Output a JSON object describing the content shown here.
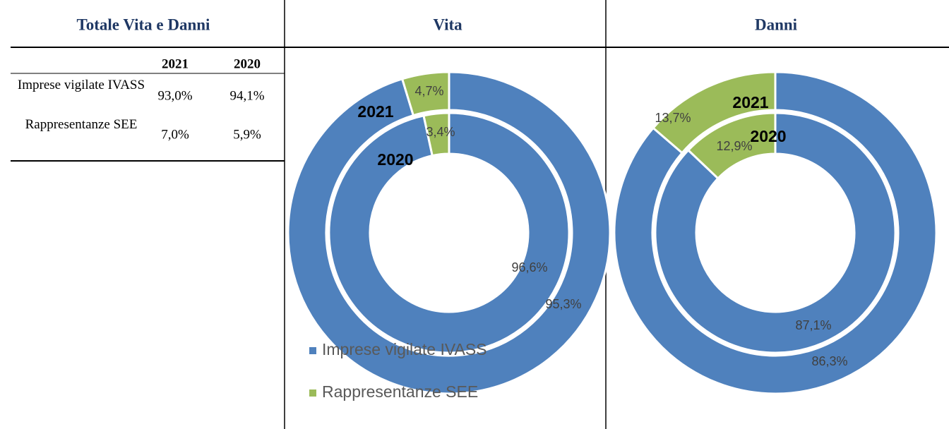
{
  "headers": [
    "Totale Vita e Danni",
    "Vita",
    "Danni"
  ],
  "table": {
    "columns": [
      "2021",
      "2020"
    ],
    "rows": [
      {
        "label": "Imprese vigilate IVASS",
        "values": [
          "93,0%",
          "94,1%"
        ]
      },
      {
        "label": "Rappresentanze SEE",
        "values": [
          "7,0%",
          "5,9%"
        ]
      }
    ]
  },
  "chart_data": [
    {
      "type": "donut",
      "categories": [
        "Imprese vigilate IVASS",
        "Rappresentanze SEE"
      ],
      "colors": [
        "#4f81bd",
        "#9bbb59"
      ],
      "series": [
        {
          "name": "2021",
          "values": [
            95.3,
            4.7
          ],
          "value_labels": [
            "95,3%",
            "4,7%"
          ]
        },
        {
          "name": "2020",
          "values": [
            96.6,
            3.4
          ],
          "value_labels": [
            "96,6%",
            "3,4%"
          ]
        }
      ]
    },
    {
      "type": "donut",
      "colors": [
        "#4f81bd",
        "#9bbb59"
      ],
      "series": [
        {
          "name": "2021",
          "values": [
            86.3,
            13.7
          ],
          "value_labels": [
            "86,3%",
            "13,7%"
          ]
        },
        {
          "name": "2020",
          "values": [
            87.1,
            12.9
          ],
          "value_labels": [
            "87,1%",
            "12,9%"
          ]
        }
      ]
    }
  ]
}
